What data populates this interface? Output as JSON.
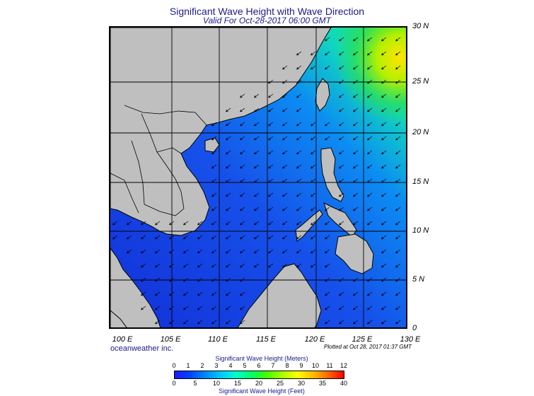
{
  "title": "Significant Wave Height with Wave Direction",
  "subtitle": "Valid For Oct-28-2017 06:00 GMT",
  "lat_labels": [
    "30 N",
    "25 N",
    "20 N",
    "15 N",
    "10 N",
    "5 N",
    "0"
  ],
  "lon_labels": [
    "100 E",
    "105 E",
    "110 E",
    "115 E",
    "120 E",
    "125 E",
    "130 E"
  ],
  "credit": "oceanweather inc.",
  "plotted": "Plotted at Oct 28, 2017 01:37 GMT",
  "legend": {
    "meters_title": "Significant Wave Height (Meters)",
    "feet_title": "Significant Wave Height (Feet)",
    "meters_ticks": [
      "0",
      "1",
      "2",
      "3",
      "4",
      "5",
      "6",
      "7",
      "8",
      "9",
      "10",
      "11",
      "12"
    ],
    "feet_ticks": [
      "0",
      "5",
      "10",
      "15",
      "20",
      "25",
      "30",
      "35",
      "40"
    ],
    "colors": [
      "#1a1aff",
      "#0044ff",
      "#0088ff",
      "#00c8ff",
      "#00ffcc",
      "#00ff66",
      "#44ff00",
      "#aaff00",
      "#ffff00",
      "#ffbb00",
      "#ff6600",
      "#ff0000"
    ]
  },
  "colors": {
    "land": "#bfbfbf",
    "sea_low": "#1440e8",
    "sea_mid": "#0a7cf0",
    "sea_high": "#18e6a0",
    "peak": "#ffe400"
  }
}
